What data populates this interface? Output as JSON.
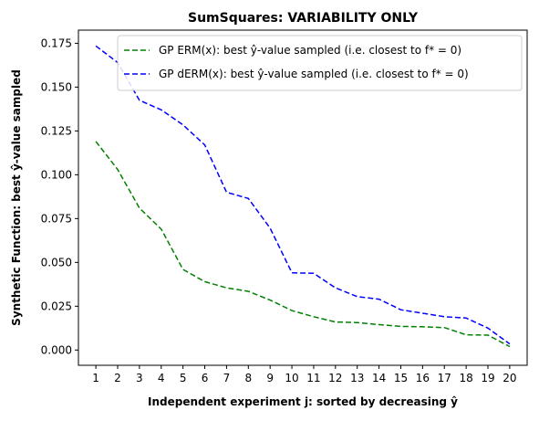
{
  "chart_data": {
    "type": "line",
    "title": "SumSquares: VARIABILITY ONLY",
    "xlabel": "Independent experiment j: sorted by decreasing ŷ",
    "ylabel": "Synthetic Function: best ŷ-value sampled",
    "x": [
      1,
      2,
      3,
      4,
      5,
      6,
      7,
      8,
      9,
      10,
      11,
      12,
      13,
      14,
      15,
      16,
      17,
      18,
      19,
      20
    ],
    "x_tick_labels": [
      "1",
      "2",
      "3",
      "4",
      "5",
      "6",
      "7",
      "8",
      "9",
      "10",
      "11",
      "12",
      "13",
      "14",
      "15",
      "16",
      "17",
      "18",
      "19",
      "20"
    ],
    "xlim": [
      0.2,
      20.8
    ],
    "ylim": [
      -0.0087,
      0.1825
    ],
    "y_ticks": [
      0.0,
      0.025,
      0.05,
      0.075,
      0.1,
      0.125,
      0.15,
      0.175
    ],
    "y_tick_labels": [
      "0.000",
      "0.025",
      "0.050",
      "0.075",
      "0.100",
      "0.125",
      "0.150",
      "0.175"
    ],
    "legend_position": "top-right",
    "grid": false,
    "series": [
      {
        "name": "GP ERM(x):   best ŷ-value sampled (i.e. closest to f* = 0)",
        "color": "#008000",
        "dash": "dashed",
        "values": [
          0.119,
          0.103,
          0.081,
          0.069,
          0.046,
          0.039,
          0.0355,
          0.0335,
          0.0285,
          0.0225,
          0.019,
          0.016,
          0.0157,
          0.0145,
          0.0135,
          0.0133,
          0.0128,
          0.0087,
          0.0085,
          0.002
        ]
      },
      {
        "name": "GP dERM(x): best ŷ-value sampled (i.e. closest to f* = 0)",
        "color": "#0000ff",
        "dash": "dashed",
        "values": [
          0.1735,
          0.164,
          0.1425,
          0.137,
          0.1285,
          0.117,
          0.09,
          0.0865,
          0.0695,
          0.044,
          0.0438,
          0.0355,
          0.0305,
          0.029,
          0.023,
          0.021,
          0.019,
          0.0183,
          0.0125,
          0.0035
        ]
      }
    ]
  }
}
